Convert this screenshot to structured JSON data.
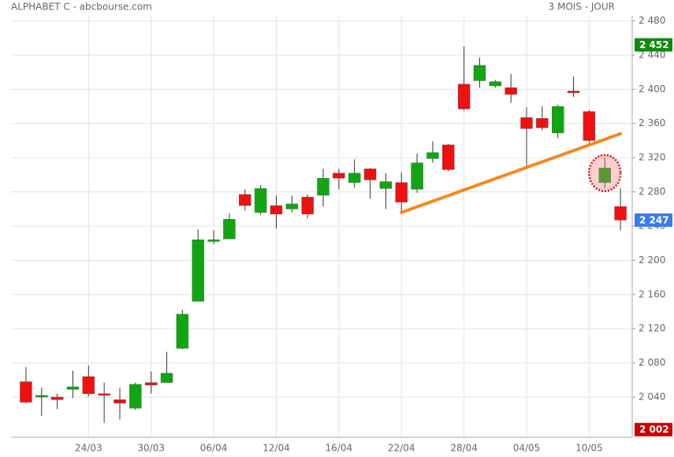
{
  "chart_data": {
    "type": "candlestick",
    "title": "ALPHABET C - abcbourse.com",
    "subtitle": "3 MOIS - JOUR",
    "categories": [
      null,
      null,
      null,
      null,
      "24/03",
      null,
      null,
      null,
      "30/03",
      null,
      null,
      null,
      "06/04",
      null,
      null,
      null,
      "12/04",
      null,
      null,
      null,
      "16/04",
      null,
      null,
      null,
      "22/04",
      null,
      null,
      null,
      "28/04",
      null,
      null,
      null,
      "04/05",
      null,
      null,
      null,
      "10/05",
      null,
      null
    ],
    "open": [
      2058,
      2040,
      2040,
      2049,
      2064,
      2044,
      2037,
      2027,
      2057,
      2057,
      2097,
      2152,
      2222,
      2225,
      2277,
      2256,
      2264,
      2260,
      2274,
      2276,
      2302,
      2291,
      2307,
      2284,
      2291,
      2283,
      2319,
      2335,
      2406,
      2410,
      2404,
      2402,
      2367,
      2366,
      2349,
      2398,
      2374,
      2291,
      2263
    ],
    "high": [
      2075,
      2051,
      2044,
      2071,
      2077,
      2057,
      2051,
      2057,
      2070,
      2093,
      2142,
      2236,
      2235,
      2255,
      2283,
      2288,
      2276,
      2276,
      2277,
      2307,
      2307,
      2318,
      2308,
      2302,
      2303,
      2325,
      2339,
      2336,
      2450,
      2437,
      2411,
      2418,
      2379,
      2380,
      2382,
      2415,
      2376,
      2320,
      2284
    ],
    "low": [
      2033,
      2018,
      2026,
      2039,
      2041,
      2010,
      2014,
      2025,
      2044,
      2057,
      2096,
      2152,
      2219,
      2225,
      2258,
      2253,
      2237,
      2256,
      2249,
      2263,
      2283,
      2285,
      2272,
      2260,
      2256,
      2279,
      2314,
      2304,
      2375,
      2402,
      2402,
      2384,
      2309,
      2352,
      2343,
      2391,
      2337,
      2284,
      2235
    ],
    "close": [
      2034,
      2042,
      2037,
      2052,
      2044,
      2042,
      2033,
      2055,
      2054,
      2068,
      2137,
      2224,
      2224,
      2248,
      2264,
      2284,
      2254,
      2266,
      2254,
      2296,
      2296,
      2302,
      2294,
      2292,
      2268,
      2314,
      2326,
      2306,
      2377,
      2428,
      2409,
      2394,
      2354,
      2355,
      2380,
      2396,
      2340,
      2308,
      2247
    ],
    "up_color": "#11a611",
    "down_color": "#ee1111",
    "ylim": [
      1993,
      2486
    ],
    "yticks": [
      {
        "value": 2040,
        "label": "2 040"
      },
      {
        "value": 2080,
        "label": "2 080"
      },
      {
        "value": 2120,
        "label": "2 120"
      },
      {
        "value": 2160,
        "label": "2 160"
      },
      {
        "value": 2200,
        "label": "2 200"
      },
      {
        "value": 2240,
        "label": "2 240"
      },
      {
        "value": 2280,
        "label": "2 280"
      },
      {
        "value": 2320,
        "label": "2 320"
      },
      {
        "value": 2360,
        "label": "2 360"
      },
      {
        "value": 2400,
        "label": "2 400"
      },
      {
        "value": 2440,
        "label": "2 440"
      },
      {
        "value": 2480,
        "label": "2 480"
      }
    ],
    "grid": true,
    "price_tags": [
      {
        "value": 2452,
        "label": "2 452",
        "color": "#128a12"
      },
      {
        "value": 2247,
        "label": "2 247",
        "color": "#3a7be8"
      },
      {
        "value": 2002,
        "label": "2 002",
        "color": "#c80000"
      }
    ],
    "trend_line": {
      "x": [
        24,
        38
      ],
      "y": [
        2256,
        2348
      ],
      "color": "#f5891f"
    },
    "highlight_index": 37
  }
}
